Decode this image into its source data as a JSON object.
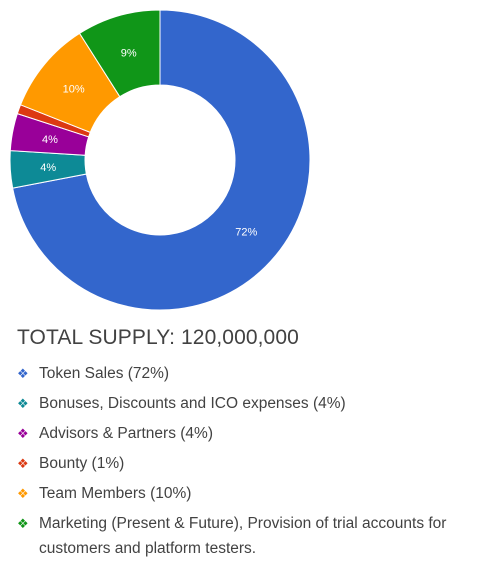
{
  "chart_data": {
    "type": "pie",
    "donut": true,
    "title": "",
    "slices": [
      {
        "label": "Token Sales",
        "value": 72,
        "display": "72%",
        "color": "#3366cc"
      },
      {
        "label": "Bonuses, Discounts and ICO expenses",
        "value": 4,
        "display": "4%",
        "color": "#0d8a96"
      },
      {
        "label": "Advisors & Partners",
        "value": 4,
        "display": "4%",
        "color": "#990099"
      },
      {
        "label": "Bounty",
        "value": 1,
        "display": "",
        "color": "#dc3912"
      },
      {
        "label": "Team Members",
        "value": 10,
        "display": "10%",
        "color": "#ff9900"
      },
      {
        "label": "Marketing",
        "value": 9,
        "display": "9%",
        "color": "#109618"
      }
    ]
  },
  "supply": {
    "total_label": "TOTAL SUPPLY: 120,000,000"
  },
  "legend": {
    "items": [
      {
        "text": "Token Sales (72%)",
        "color": "#3366cc"
      },
      {
        "text": "Bonuses, Discounts and ICO expenses (4%)",
        "color": "#0d8a96"
      },
      {
        "text": "Advisors & Partners (4%)",
        "color": "#990099"
      },
      {
        "text": "Bounty (1%)",
        "color": "#dc3912"
      },
      {
        "text": "Team Members (10%)",
        "color": "#ff9900"
      },
      {
        "text": "Marketing (Present & Future), Provision of trial accounts for customers and platform testers.",
        "color": "#109618"
      }
    ]
  }
}
